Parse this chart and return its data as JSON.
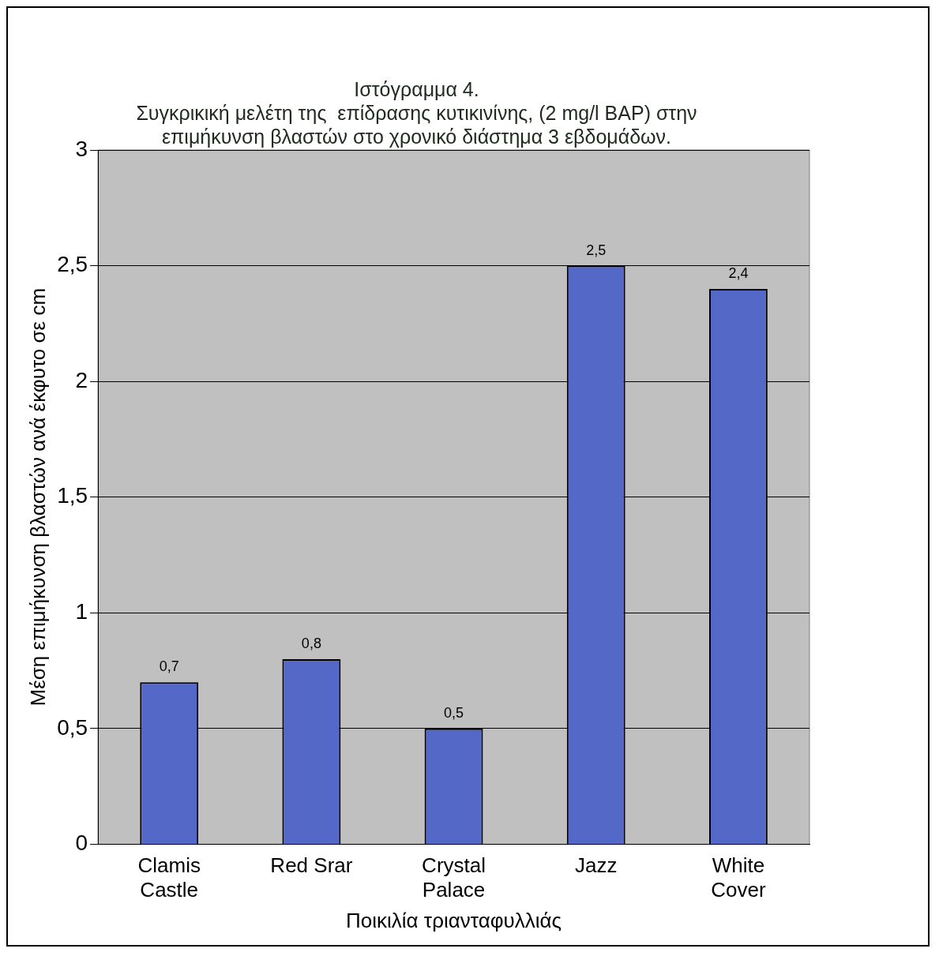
{
  "chart_data": {
    "type": "bar",
    "title": "Ιστόγραμμα 4.\nΣυγκρικική μελέτη της  επίδρασης κυτικινίνης, (2 mg/l BAP) στην\nεπιμήκυνση βλαστών στο χρονικό διάστημα 3 εβδομάδων.",
    "xlabel": "Ποικιλία τριανταφυλλιάς",
    "ylabel": "Μέση επιμήκυνση βλαστών ανά έκφυτο σε cm",
    "categories": [
      "Clamis Castle",
      "Red Srar",
      "Crystal Palace",
      "Jazz",
      "White Cover"
    ],
    "values": [
      0.7,
      0.8,
      0.5,
      2.5,
      2.4
    ],
    "color": "#5468c8",
    "ylim": [
      0,
      3
    ],
    "yticks": [
      0,
      {
        "value": 0.5,
        "label": "0,5"
      },
      1,
      {
        "value": 1.5,
        "label": "1,5"
      },
      2,
      {
        "value": 2.5,
        "label": "2,5"
      },
      3
    ],
    "value_labels": [
      "0,7",
      "0,8",
      "0,5",
      "2,5",
      "2,4"
    ],
    "grid": "y",
    "legend": false
  }
}
